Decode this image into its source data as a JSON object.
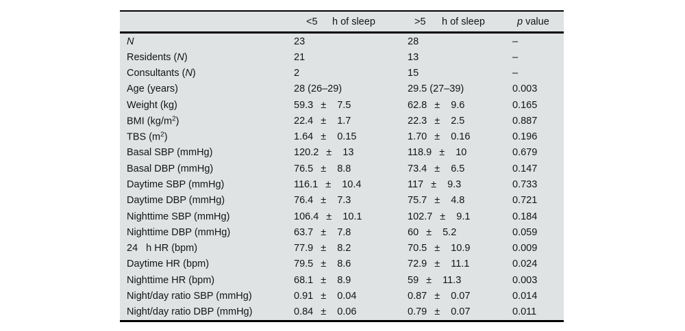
{
  "colors": {
    "table_background": "#dfe3e3",
    "rule": "#000000",
    "text": "#141414",
    "page_background": "#ffffff"
  },
  "table": {
    "columns": {
      "col1_prefix": "<5",
      "col1_label": "h of sleep",
      "col2_prefix": ">5",
      "col2_label": "h of sleep",
      "p_italic": "p",
      "p_rest": " value"
    },
    "plus_minus": "±",
    "rows": [
      {
        "label": [
          {
            "t": "N",
            "s": "i"
          }
        ],
        "c1": {
          "text": "23"
        },
        "c2": {
          "text": "28"
        },
        "p": "–"
      },
      {
        "label": [
          {
            "t": "Residents ("
          },
          {
            "t": "N",
            "s": "i"
          },
          {
            "t": ")"
          }
        ],
        "c1": {
          "text": "21"
        },
        "c2": {
          "text": "13"
        },
        "p": "–"
      },
      {
        "label": [
          {
            "t": "Consultants ("
          },
          {
            "t": "N",
            "s": "i"
          },
          {
            "t": ")"
          }
        ],
        "c1": {
          "text": "2"
        },
        "c2": {
          "text": "15"
        },
        "p": "–"
      },
      {
        "label": [
          {
            "t": "Age (years)"
          }
        ],
        "c1": {
          "text": "28 (26–29)"
        },
        "c2": {
          "text": "29.5 (27–39)"
        },
        "p": "0.003"
      },
      {
        "label": [
          {
            "t": "Weight (kg)"
          }
        ],
        "c1": {
          "mean": "59.3",
          "sd": "7.5"
        },
        "c2": {
          "mean": "62.8",
          "sd": "9.6"
        },
        "p": "0.165"
      },
      {
        "label": [
          {
            "t": "BMI (kg/m"
          },
          {
            "t": "2",
            "s": "sup"
          },
          {
            "t": ")"
          }
        ],
        "c1": {
          "mean": "22.4",
          "sd": "1.7"
        },
        "c2": {
          "mean": "22.3",
          "sd": "2.5"
        },
        "p": "0.887"
      },
      {
        "label": [
          {
            "t": "TBS (m"
          },
          {
            "t": "2",
            "s": "sup"
          },
          {
            "t": ")"
          }
        ],
        "c1": {
          "mean": "1.64",
          "sd": "0.15"
        },
        "c2": {
          "mean": "1.70",
          "sd": "0.16"
        },
        "p": "0.196"
      },
      {
        "label": [
          {
            "t": "Basal SBP (mmHg)"
          }
        ],
        "c1": {
          "mean": "120.2",
          "sd": "13"
        },
        "c2": {
          "mean": "118.9",
          "sd": "10"
        },
        "p": "0.679"
      },
      {
        "label": [
          {
            "t": "Basal DBP (mmHg)"
          }
        ],
        "c1": {
          "mean": "76.5",
          "sd": "8.8"
        },
        "c2": {
          "mean": "73.4",
          "sd": "6.5"
        },
        "p": "0.147"
      },
      {
        "label": [
          {
            "t": "Daytime SBP (mmHg)"
          }
        ],
        "c1": {
          "mean": "116.1",
          "sd": "10.4"
        },
        "c2": {
          "mean": "117",
          "sd": "9.3"
        },
        "p": "0.733"
      },
      {
        "label": [
          {
            "t": "Daytime DBP (mmHg)"
          }
        ],
        "c1": {
          "mean": "76.4",
          "sd": "7.3"
        },
        "c2": {
          "mean": "75.7",
          "sd": "4.8"
        },
        "p": "0.721"
      },
      {
        "label": [
          {
            "t": "Nighttime SBP (mmHg)"
          }
        ],
        "c1": {
          "mean": "106.4",
          "sd": "10.1"
        },
        "c2": {
          "mean": "102.7",
          "sd": "9.1"
        },
        "p": "0.184"
      },
      {
        "label": [
          {
            "t": "Nighttime DBP (mmHg)"
          }
        ],
        "c1": {
          "mean": "63.7",
          "sd": "7.8"
        },
        "c2": {
          "mean": "60",
          "sd": "5.2"
        },
        "p": "0.059"
      },
      {
        "label": [
          {
            "t": "24"
          },
          {
            "t": "h HR (bpm)",
            "s": "gap"
          }
        ],
        "c1": {
          "mean": "77.9",
          "sd": "8.2"
        },
        "c2": {
          "mean": "70.5",
          "sd": "10.9"
        },
        "p": "0.009"
      },
      {
        "label": [
          {
            "t": "Daytime HR (bpm)"
          }
        ],
        "c1": {
          "mean": "79.5",
          "sd": "8.6"
        },
        "c2": {
          "mean": "72.9",
          "sd": "11.1"
        },
        "p": "0.024"
      },
      {
        "label": [
          {
            "t": "Nighttime HR (bpm)"
          }
        ],
        "c1": {
          "mean": "68.1",
          "sd": "8.9"
        },
        "c2": {
          "mean": "59",
          "sd": "11.3"
        },
        "p": "0.003"
      },
      {
        "label": [
          {
            "t": "Night/day ratio SBP (mmHg)"
          }
        ],
        "c1": {
          "mean": "0.91",
          "sd": "0.04"
        },
        "c2": {
          "mean": "0.87",
          "sd": "0.07"
        },
        "p": "0.014"
      },
      {
        "label": [
          {
            "t": "Night/day ratio DBP (mmHg)"
          }
        ],
        "c1": {
          "mean": "0.84",
          "sd": "0.06"
        },
        "c2": {
          "mean": "0.79",
          "sd": "0.07"
        },
        "p": "0.011"
      }
    ]
  }
}
